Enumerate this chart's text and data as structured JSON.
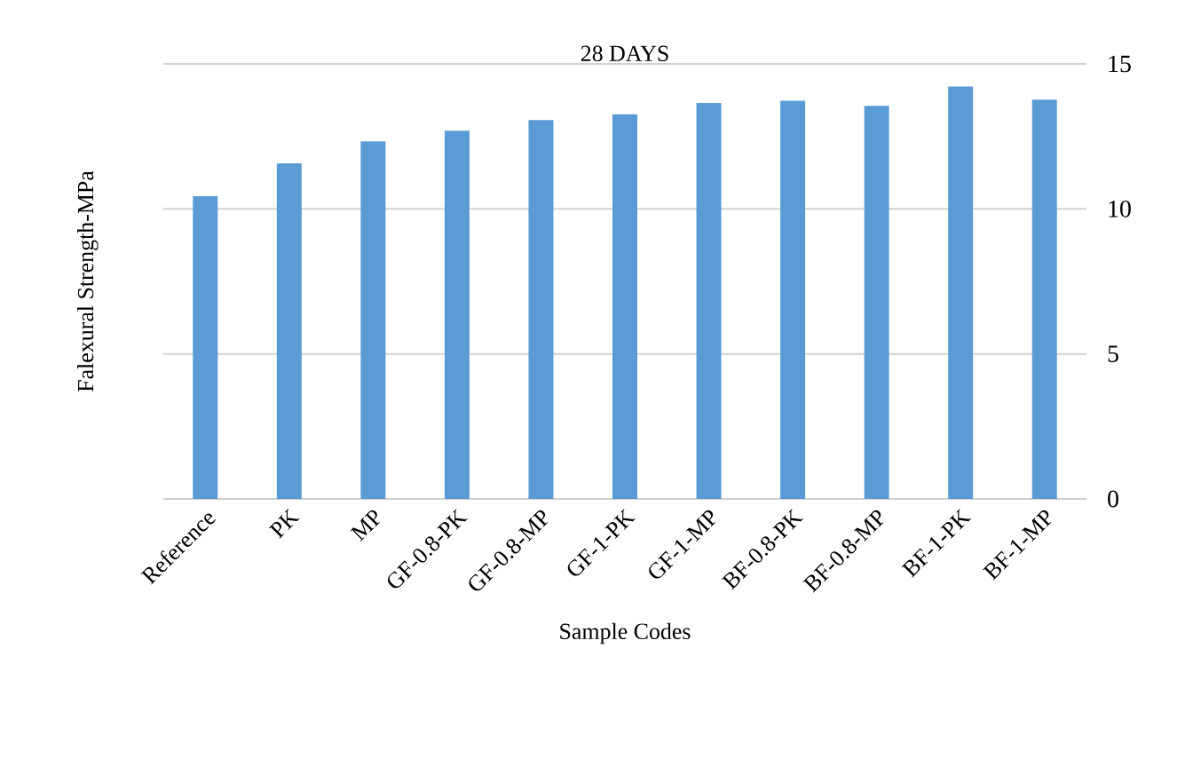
{
  "chart_data": {
    "type": "bar",
    "title": "28 DAYS",
    "xlabel": "Sample Codes",
    "ylabel": "Falexural Strength-MPa",
    "categories": [
      "Reference",
      "PK",
      "MP",
      "GF-0.8-PK",
      "GF-0.8-MP",
      "GF-1-PK",
      "GF-1-MP",
      "BF-0.8-PK",
      "BF-0.8-MP",
      "BF-1-PK",
      "BF-1-MP"
    ],
    "values": [
      10.44,
      11.57,
      12.33,
      12.7,
      13.06,
      13.26,
      13.65,
      13.73,
      13.55,
      14.22,
      13.77
    ],
    "color": "#5b9bd5",
    "ylim": [
      0,
      15
    ],
    "yticks": [
      0,
      5,
      10,
      15
    ],
    "grid": "y"
  }
}
